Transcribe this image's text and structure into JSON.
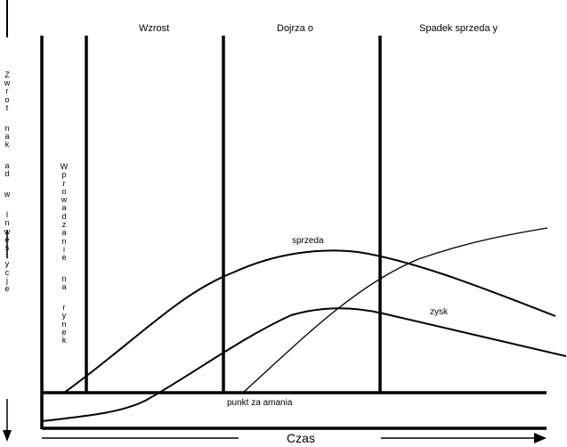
{
  "phases": {
    "introduction": "Wprowadzanie na rynek",
    "growth": "Wzrost",
    "maturity": "Dojrza o",
    "decline": "Spadek sprzeda y"
  },
  "y_axis_label": "Zwrot nak ad w Inwestycje",
  "x_axis_label": "Czas",
  "curves": {
    "sales": "sprzeda",
    "profit": "zysk",
    "investment_return": ""
  },
  "breakeven_label": "punkt za amania",
  "colors": {
    "line": "#000000",
    "background": "#ffffff"
  }
}
